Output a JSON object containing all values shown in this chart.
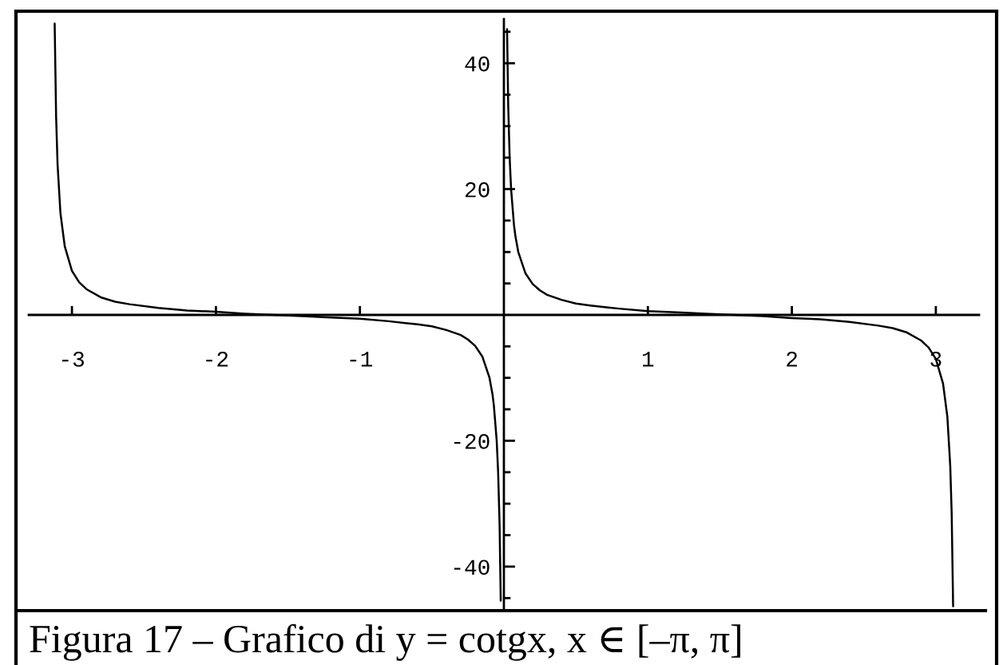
{
  "chart_data": {
    "type": "line",
    "x": [
      -3.12,
      -3.11,
      -3.1,
      -3.08,
      -3.05,
      -3.0,
      -2.95,
      -2.9,
      -2.8,
      -2.7,
      -2.6,
      -2.4,
      -2.2,
      -2.0,
      -1.8,
      -1.6,
      -1.4,
      -1.2,
      -1.0,
      -0.8,
      -0.6,
      -0.5,
      -0.4,
      -0.3,
      -0.25,
      -0.2,
      -0.15,
      -0.1,
      -0.08,
      -0.07,
      -0.05,
      -0.04,
      -0.03,
      -0.022,
      0,
      0.022,
      0.03,
      0.04,
      0.05,
      0.07,
      0.08,
      0.1,
      0.15,
      0.2,
      0.25,
      0.3,
      0.4,
      0.5,
      0.6,
      0.8,
      1.0,
      1.2,
      1.4,
      1.6,
      1.8,
      2.0,
      2.2,
      2.4,
      2.6,
      2.7,
      2.8,
      2.9,
      2.95,
      3.0,
      3.05,
      3.08,
      3.1,
      3.11,
      3.12
    ],
    "series": [
      {
        "color": "#000000",
        "values": [
          46.3,
          31.6,
          24.0,
          16.2,
          10.9,
          7.0,
          5.2,
          4.1,
          2.8,
          2.1,
          1.7,
          1.1,
          0.7,
          0.5,
          0.2,
          0.0,
          -0.2,
          -0.4,
          -0.6,
          -1.0,
          -1.5,
          -1.8,
          -2.4,
          -3.2,
          -3.9,
          -4.9,
          -6.6,
          -10.0,
          -12.5,
          -14.3,
          -20.0,
          -25.0,
          -33.3,
          -45.4,
          null,
          45.4,
          33.3,
          25.0,
          20.0,
          14.3,
          12.5,
          10.0,
          6.6,
          4.9,
          3.9,
          3.2,
          2.4,
          1.8,
          1.5,
          1.0,
          0.6,
          0.4,
          0.2,
          0.0,
          -0.2,
          -0.5,
          -0.7,
          -1.1,
          -1.7,
          -2.1,
          -2.8,
          -4.1,
          -5.2,
          -7.0,
          -10.9,
          -16.2,
          -24.0,
          -31.6,
          -46.3
        ]
      }
    ],
    "xlim": [
      -3.3,
      3.3
    ],
    "ylim": [
      -47,
      47
    ],
    "xticks": [
      -3,
      -2,
      -1,
      1,
      2,
      3
    ],
    "yticks": [
      {
        "value": -45,
        "label": null
      },
      -40,
      {
        "value": -35,
        "label": null
      },
      {
        "value": -30,
        "label": null
      },
      {
        "value": -25,
        "label": null
      },
      -20,
      {
        "value": -15,
        "label": null
      },
      {
        "value": -10,
        "label": null
      },
      {
        "value": -5,
        "label": null
      },
      {
        "value": 5,
        "label": null
      },
      {
        "value": 10,
        "label": null
      },
      {
        "value": 15,
        "label": null
      },
      20,
      {
        "value": 25,
        "label": null
      },
      {
        "value": 30,
        "label": null
      },
      {
        "value": 35,
        "label": null
      },
      40,
      {
        "value": 45,
        "label": null
      }
    ],
    "annotations": [
      "Figura 17 – Grafico di y = cotgx, x ∈ [–π, π]"
    ]
  }
}
